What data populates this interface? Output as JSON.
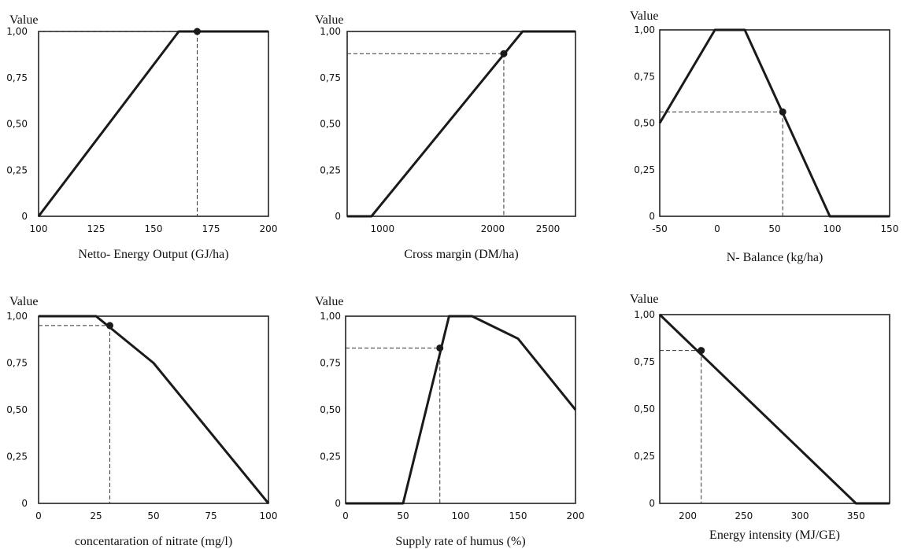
{
  "chart_data": [
    {
      "type": "line",
      "ylabel": "Value",
      "xlabel": "Netto- Energy Output (GJ/ha)",
      "xlim": [
        100,
        200
      ],
      "ylim": [
        0,
        1
      ],
      "x_ticks": [
        100,
        125,
        150,
        175,
        200
      ],
      "x_tick_labels": [
        "100",
        "125",
        "150",
        "175",
        "200"
      ],
      "y_ticks": [
        0,
        0.25,
        0.5,
        0.75,
        1
      ],
      "y_tick_labels": [
        "0",
        "0,25",
        "0,50",
        "0,75",
        "1,00"
      ],
      "series": [
        {
          "points": [
            [
              100,
              0
            ],
            [
              161,
              1
            ],
            [
              200,
              1
            ]
          ]
        }
      ],
      "marker": [
        169,
        1
      ]
    },
    {
      "type": "line",
      "ylabel": "Value",
      "xlabel": "Cross margin (DM/ha)",
      "xlim": [
        680,
        2750
      ],
      "ylim": [
        0,
        1
      ],
      "x_ticks": [
        1000,
        2000,
        2500
      ],
      "x_tick_labels": [
        "1000",
        "2000",
        "2500"
      ],
      "y_ticks": [
        0,
        0.25,
        0.5,
        0.75,
        1
      ],
      "y_tick_labels": [
        "0",
        "0,25",
        "0,50",
        "0,75",
        "1,00"
      ],
      "series": [
        {
          "points": [
            [
              680,
              0
            ],
            [
              900,
              0
            ],
            [
              2270,
              1
            ],
            [
              2750,
              1
            ]
          ]
        }
      ],
      "marker": [
        2100,
        0.88
      ]
    },
    {
      "type": "line",
      "ylabel": "Value",
      "xlabel": "N- Balance (kg/ha)",
      "xlim": [
        -50,
        150
      ],
      "ylim": [
        0,
        1
      ],
      "x_ticks": [
        -50,
        0,
        50,
        100,
        150
      ],
      "x_tick_labels": [
        "-50",
        "0",
        "50",
        "100",
        "150"
      ],
      "y_ticks": [
        0,
        0.25,
        0.5,
        0.75,
        1
      ],
      "y_tick_labels": [
        "0",
        "0,25",
        "0,50",
        "0,75",
        "1,00"
      ],
      "series": [
        {
          "points": [
            [
              -50,
              0.5
            ],
            [
              -2,
              1
            ],
            [
              24,
              1
            ],
            [
              98,
              0
            ],
            [
              150,
              0
            ]
          ]
        }
      ],
      "marker": [
        57,
        0.56
      ]
    },
    {
      "type": "line",
      "ylabel": "Value",
      "xlabel": "concentaration of nitrate (mg/l)",
      "xlim": [
        0,
        100
      ],
      "ylim": [
        0,
        1
      ],
      "x_ticks": [
        0,
        25,
        50,
        75,
        100
      ],
      "x_tick_labels": [
        "0",
        "25",
        "50",
        "75",
        "100"
      ],
      "y_ticks": [
        0,
        0.25,
        0.5,
        0.75,
        1
      ],
      "y_tick_labels": [
        "0",
        "0,25",
        "0,50",
        "0,75",
        "1,00"
      ],
      "series": [
        {
          "points": [
            [
              0,
              1
            ],
            [
              25,
              1
            ],
            [
              50,
              0.75
            ],
            [
              100,
              0
            ]
          ]
        }
      ],
      "marker": [
        31,
        0.95
      ]
    },
    {
      "type": "line",
      "ylabel": "Value",
      "xlabel": "Supply rate of humus (%)",
      "xlim": [
        0,
        200
      ],
      "ylim": [
        0,
        1
      ],
      "x_ticks": [
        0,
        50,
        100,
        150,
        200
      ],
      "x_tick_labels": [
        "0",
        "50",
        "100",
        "150",
        "200"
      ],
      "y_ticks": [
        0,
        0.25,
        0.5,
        0.75,
        1
      ],
      "y_tick_labels": [
        "0",
        "0,25",
        "0,50",
        "0,75",
        "1,00"
      ],
      "series": [
        {
          "points": [
            [
              0,
              0
            ],
            [
              50,
              0
            ],
            [
              90,
              1
            ],
            [
              110,
              1
            ],
            [
              150,
              0.88
            ],
            [
              200,
              0.5
            ]
          ]
        }
      ],
      "marker": [
        82,
        0.83
      ]
    },
    {
      "type": "line",
      "ylabel": "Value",
      "xlabel": "Energy intensity (MJ/GE)",
      "xlim": [
        175,
        380
      ],
      "ylim": [
        0,
        1
      ],
      "x_ticks": [
        200,
        250,
        300,
        350
      ],
      "x_tick_labels": [
        "200",
        "250",
        "300",
        "350"
      ],
      "y_ticks": [
        0,
        0.25,
        0.5,
        0.75,
        1
      ],
      "y_tick_labels": [
        "0",
        "0,25",
        "0,50",
        "0,75",
        "1,00"
      ],
      "series": [
        {
          "points": [
            [
              175,
              1
            ],
            [
              350,
              0
            ],
            [
              380,
              0
            ]
          ]
        }
      ],
      "marker": [
        212,
        0.81
      ]
    }
  ]
}
